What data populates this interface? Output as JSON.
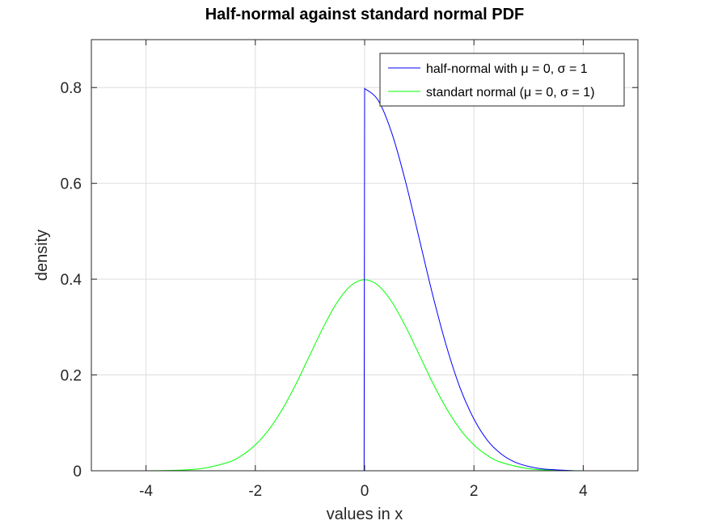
{
  "chart_data": {
    "type": "line",
    "title": "Half-normal against standard normal PDF",
    "xlabel": "values in x",
    "ylabel": "density",
    "xlim": [
      -5,
      5
    ],
    "ylim": [
      0,
      0.9
    ],
    "xticks": [
      -4,
      -2,
      0,
      2,
      4
    ],
    "yticks": [
      0,
      0.2,
      0.4,
      0.6,
      0.8
    ],
    "xtick_labels": [
      "-4",
      "-2",
      "0",
      "2",
      "4"
    ],
    "ytick_labels": [
      "0",
      "0.2",
      "0.4",
      "0.6",
      "0.8"
    ],
    "grid": true,
    "legend_position": "top-right",
    "series": [
      {
        "name": "half-normal with μ = 0, σ = 1",
        "color": "#0000ff",
        "x": [
          -3.6,
          -3.0,
          -2.0,
          -1.0,
          -0.01,
          0.0,
          0.25,
          0.5,
          0.75,
          1.0,
          1.25,
          1.5,
          1.75,
          2.0,
          2.25,
          2.5,
          2.75,
          3.0,
          3.25,
          3.5,
          3.85
        ],
        "y": [
          0,
          0,
          0,
          0,
          0,
          0.798,
          0.773,
          0.704,
          0.603,
          0.484,
          0.365,
          0.259,
          0.172,
          0.108,
          0.063,
          0.035,
          0.018,
          0.009,
          0.004,
          0.002,
          0.0
        ]
      },
      {
        "name": "standart normal (μ = 0, σ = 1)",
        "color": "#00ff00",
        "x": [
          -5.0,
          -4.0,
          -3.5,
          -3.0,
          -2.5,
          -2.25,
          -2.0,
          -1.75,
          -1.5,
          -1.25,
          -1.0,
          -0.75,
          -0.5,
          -0.25,
          0.0,
          0.25,
          0.5,
          0.75,
          1.0,
          1.25,
          1.5,
          1.75,
          2.0,
          2.25,
          2.5,
          3.0,
          3.5,
          4.0,
          5.0
        ],
        "y": [
          0.0,
          0.0001,
          0.0009,
          0.0044,
          0.0175,
          0.0317,
          0.054,
          0.0863,
          0.1295,
          0.1826,
          0.242,
          0.3011,
          0.3521,
          0.3867,
          0.3989,
          0.3867,
          0.3521,
          0.3011,
          0.242,
          0.1826,
          0.1295,
          0.0863,
          0.054,
          0.0317,
          0.0175,
          0.0044,
          0.0009,
          0.0001,
          0.0
        ]
      }
    ]
  }
}
